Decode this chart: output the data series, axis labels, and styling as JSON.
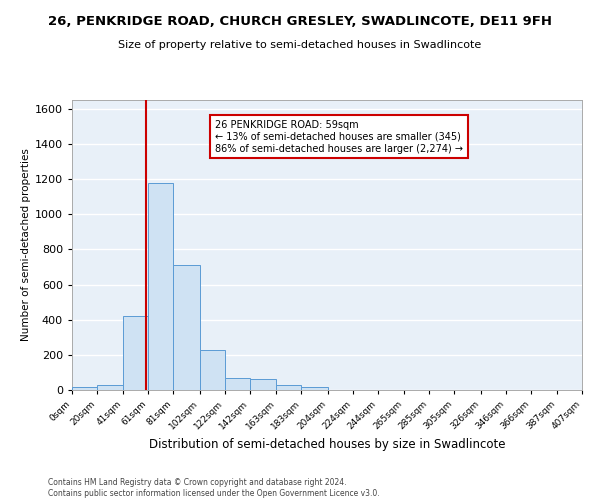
{
  "title": "26, PENKRIDGE ROAD, CHURCH GRESLEY, SWADLINCOTE, DE11 9FH",
  "subtitle": "Size of property relative to semi-detached houses in Swadlincote",
  "xlabel": "Distribution of semi-detached houses by size in Swadlincote",
  "ylabel": "Number of semi-detached properties",
  "footer": "Contains HM Land Registry data © Crown copyright and database right 2024.\nContains public sector information licensed under the Open Government Licence v3.0.",
  "bin_edges": [
    0,
    20,
    41,
    61,
    81,
    102,
    122,
    142,
    163,
    183,
    204,
    224,
    244,
    265,
    285,
    305,
    326,
    346,
    366,
    387,
    407
  ],
  "bin_counts": [
    15,
    30,
    420,
    1180,
    710,
    225,
    70,
    65,
    30,
    15,
    0,
    0,
    0,
    0,
    0,
    0,
    0,
    0,
    0,
    0
  ],
  "bar_color": "#cfe2f3",
  "bar_edge_color": "#5b9bd5",
  "property_size": 59,
  "annotation_title": "26 PENKRIDGE ROAD: 59sqm",
  "annotation_line1": "← 13% of semi-detached houses are smaller (345)",
  "annotation_line2": "86% of semi-detached houses are larger (2,274) →",
  "vline_color": "#cc0000",
  "annotation_box_color": "#ffffff",
  "annotation_box_edge": "#cc0000",
  "ylim": [
    0,
    1650
  ],
  "yticks": [
    0,
    200,
    400,
    600,
    800,
    1000,
    1200,
    1400,
    1600
  ],
  "bg_color": "#e8f0f8",
  "grid_color": "#ffffff",
  "fig_bg": "#ffffff",
  "tick_labels": [
    "0sqm",
    "20sqm",
    "41sqm",
    "61sqm",
    "81sqm",
    "102sqm",
    "122sqm",
    "142sqm",
    "163sqm",
    "183sqm",
    "204sqm",
    "224sqm",
    "244sqm",
    "265sqm",
    "285sqm",
    "305sqm",
    "326sqm",
    "346sqm",
    "366sqm",
    "387sqm",
    "407sqm"
  ]
}
